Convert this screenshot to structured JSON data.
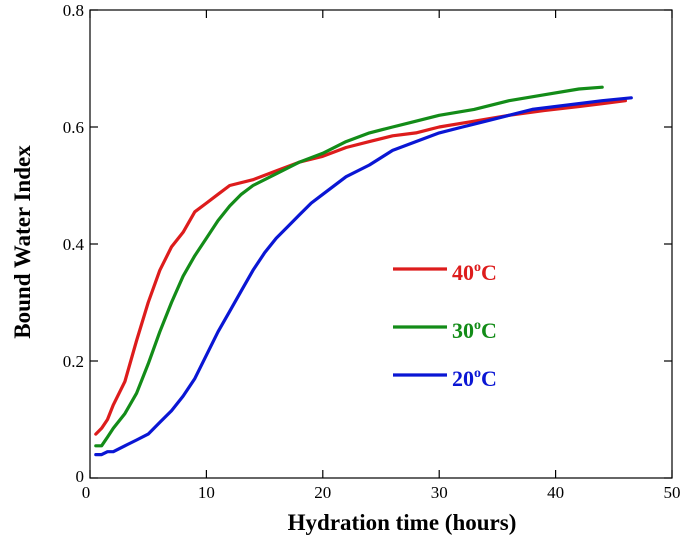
{
  "chart_data": {
    "type": "line",
    "title": "",
    "xlabel": "Hydration time (hours)",
    "ylabel": "Bound Water Index",
    "xlim": [
      0,
      50
    ],
    "ylim": [
      0,
      0.8
    ],
    "x_ticks": [
      0,
      10,
      20,
      30,
      40,
      50
    ],
    "y_ticks": [
      0,
      0.2,
      0.4,
      0.6,
      0.8
    ],
    "x_tick_labels": [
      "0",
      "10",
      "20",
      "30",
      "40",
      "50"
    ],
    "y_tick_labels": [
      "0",
      "0.2",
      "0.4",
      "0.6",
      "0.8"
    ],
    "grid": false,
    "legend_position": "center-right",
    "series": [
      {
        "name": "40",
        "name_superscript": "o",
        "name_suffix": "C",
        "color": "#dd1c1c",
        "points": [
          [
            0.5,
            0.075
          ],
          [
            1,
            0.085
          ],
          [
            1.5,
            0.1
          ],
          [
            2,
            0.125
          ],
          [
            3,
            0.165
          ],
          [
            4,
            0.235
          ],
          [
            5,
            0.3
          ],
          [
            6,
            0.355
          ],
          [
            7,
            0.395
          ],
          [
            8,
            0.42
          ],
          [
            9,
            0.455
          ],
          [
            10,
            0.47
          ],
          [
            11,
            0.485
          ],
          [
            12,
            0.5
          ],
          [
            14,
            0.51
          ],
          [
            16,
            0.525
          ],
          [
            18,
            0.54
          ],
          [
            20,
            0.55
          ],
          [
            22,
            0.565
          ],
          [
            24,
            0.575
          ],
          [
            26,
            0.585
          ],
          [
            28,
            0.59
          ],
          [
            30,
            0.6
          ],
          [
            33,
            0.61
          ],
          [
            36,
            0.62
          ],
          [
            39,
            0.628
          ],
          [
            42,
            0.635
          ],
          [
            44,
            0.64
          ],
          [
            46,
            0.645
          ]
        ]
      },
      {
        "name": "30",
        "name_superscript": "o",
        "name_suffix": "C",
        "color": "#138c18",
        "points": [
          [
            0.5,
            0.055
          ],
          [
            1,
            0.055
          ],
          [
            1.5,
            0.07
          ],
          [
            2,
            0.085
          ],
          [
            3,
            0.11
          ],
          [
            4,
            0.145
          ],
          [
            5,
            0.195
          ],
          [
            6,
            0.25
          ],
          [
            7,
            0.3
          ],
          [
            8,
            0.345
          ],
          [
            9,
            0.38
          ],
          [
            10,
            0.41
          ],
          [
            11,
            0.44
          ],
          [
            12,
            0.465
          ],
          [
            13,
            0.485
          ],
          [
            14,
            0.5
          ],
          [
            16,
            0.52
          ],
          [
            18,
            0.54
          ],
          [
            20,
            0.555
          ],
          [
            22,
            0.575
          ],
          [
            24,
            0.59
          ],
          [
            26,
            0.6
          ],
          [
            28,
            0.61
          ],
          [
            30,
            0.62
          ],
          [
            33,
            0.63
          ],
          [
            36,
            0.645
          ],
          [
            39,
            0.655
          ],
          [
            42,
            0.665
          ],
          [
            44,
            0.668
          ]
        ]
      },
      {
        "name": "20",
        "name_superscript": "o",
        "name_suffix": "C",
        "color": "#0a16d4",
        "points": [
          [
            0.5,
            0.04
          ],
          [
            1,
            0.04
          ],
          [
            1.5,
            0.045
          ],
          [
            2,
            0.045
          ],
          [
            3,
            0.055
          ],
          [
            4,
            0.065
          ],
          [
            5,
            0.075
          ],
          [
            6,
            0.095
          ],
          [
            7,
            0.115
          ],
          [
            8,
            0.14
          ],
          [
            9,
            0.17
          ],
          [
            10,
            0.21
          ],
          [
            11,
            0.25
          ],
          [
            12,
            0.285
          ],
          [
            13,
            0.32
          ],
          [
            14,
            0.355
          ],
          [
            15,
            0.385
          ],
          [
            16,
            0.41
          ],
          [
            17,
            0.43
          ],
          [
            18,
            0.45
          ],
          [
            19,
            0.47
          ],
          [
            20,
            0.485
          ],
          [
            22,
            0.515
          ],
          [
            24,
            0.535
          ],
          [
            26,
            0.56
          ],
          [
            28,
            0.575
          ],
          [
            30,
            0.59
          ],
          [
            32,
            0.6
          ],
          [
            34,
            0.61
          ],
          [
            36,
            0.62
          ],
          [
            38,
            0.63
          ],
          [
            40,
            0.635
          ],
          [
            42,
            0.64
          ],
          [
            44,
            0.645
          ],
          [
            46.5,
            0.65
          ]
        ]
      }
    ]
  }
}
